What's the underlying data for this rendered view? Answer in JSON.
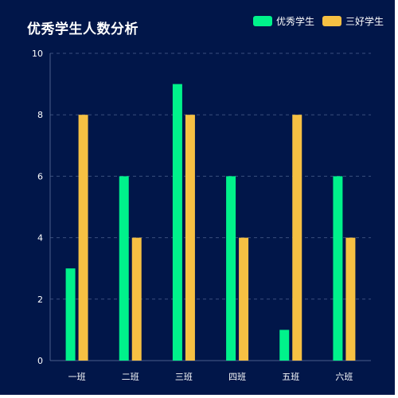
{
  "chart_data": {
    "type": "bar",
    "title": "优秀学生人数分析",
    "categories": [
      "一班",
      "二班",
      "三班",
      "四班",
      "五班",
      "六班"
    ],
    "series": [
      {
        "name": "优秀学生",
        "values": [
          3,
          6,
          9,
          6,
          1,
          6
        ],
        "color": "#00f28b"
      },
      {
        "name": "三好学生",
        "values": [
          8,
          4,
          8,
          4,
          8,
          4
        ],
        "color": "#f6c043"
      }
    ],
    "ylim": [
      0,
      10
    ],
    "yticks": [
      0,
      2,
      4,
      6,
      8,
      10
    ],
    "grid": true,
    "legend_position": "top-right",
    "background_color": "#011649"
  }
}
